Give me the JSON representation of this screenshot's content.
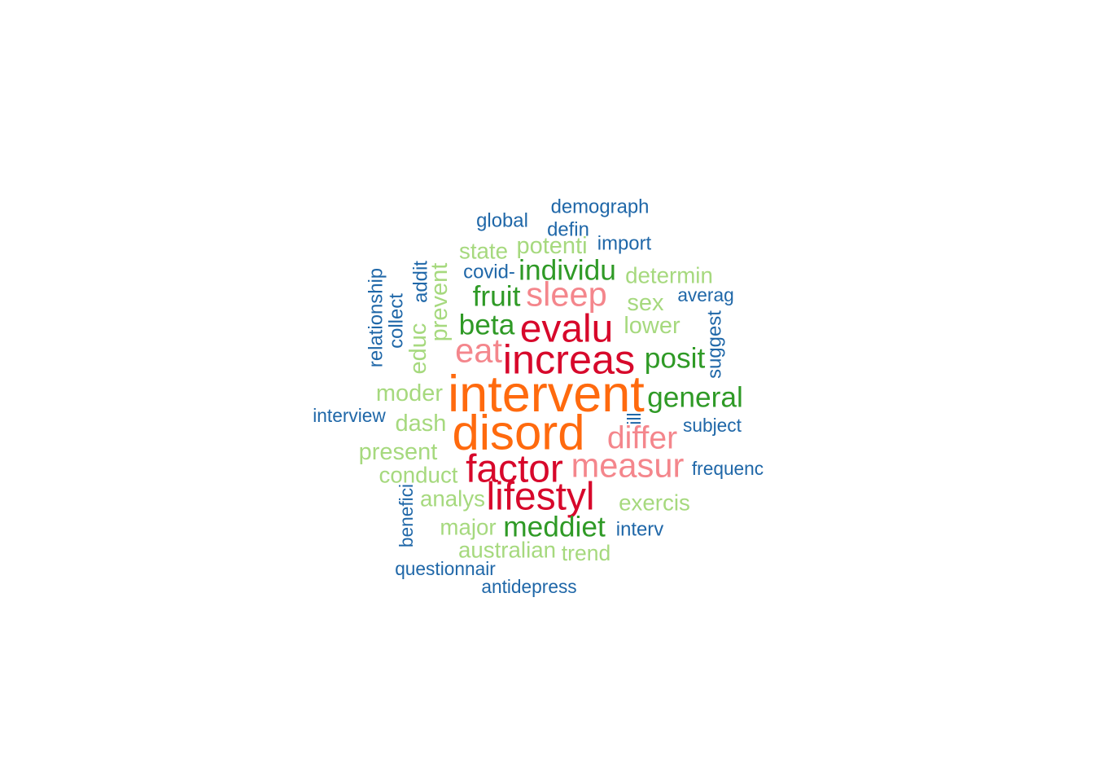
{
  "chart_data": {
    "type": "wordcloud",
    "palette": {
      "tier1": "#ff6a0e",
      "tier2": "#d7082b",
      "tier3": "#f4868c",
      "tier4": "#2f9a26",
      "tier5": "#a6d97e",
      "tier6": "#1f67a8"
    },
    "words": [
      {
        "word": "intervent",
        "weight": 10,
        "tier": "tier1"
      },
      {
        "word": "disord",
        "weight": 9.5,
        "tier": "tier1"
      },
      {
        "word": "increas",
        "weight": 8,
        "tier": "tier2"
      },
      {
        "word": "evalu",
        "weight": 7.6,
        "tier": "tier2"
      },
      {
        "word": "factor",
        "weight": 7.6,
        "tier": "tier2"
      },
      {
        "word": "lifestyl",
        "weight": 7.6,
        "tier": "tier2"
      },
      {
        "word": "sleep",
        "weight": 6.6,
        "tier": "tier3"
      },
      {
        "word": "eat",
        "weight": 6.6,
        "tier": "tier3"
      },
      {
        "word": "measur",
        "weight": 6.6,
        "tier": "tier3"
      },
      {
        "word": "differ",
        "weight": 6.2,
        "tier": "tier3"
      },
      {
        "word": "individu",
        "weight": 5.6,
        "tier": "tier4"
      },
      {
        "word": "fruit",
        "weight": 5.6,
        "tier": "tier4"
      },
      {
        "word": "beta",
        "weight": 5.6,
        "tier": "tier4"
      },
      {
        "word": "posit",
        "weight": 5.6,
        "tier": "tier4"
      },
      {
        "word": "general",
        "weight": 5.6,
        "tier": "tier4"
      },
      {
        "word": "meddiet",
        "weight": 5.6,
        "tier": "tier4"
      },
      {
        "word": "potenti",
        "weight": 4.6,
        "tier": "tier5"
      },
      {
        "word": "state",
        "weight": 4.4,
        "tier": "tier5"
      },
      {
        "word": "determin",
        "weight": 4.4,
        "tier": "tier5"
      },
      {
        "word": "sex",
        "weight": 4.6,
        "tier": "tier5"
      },
      {
        "word": "lower",
        "weight": 4.6,
        "tier": "tier5"
      },
      {
        "word": "prevent",
        "weight": 4.6,
        "tier": "tier5"
      },
      {
        "word": "educ",
        "weight": 4.6,
        "tier": "tier5"
      },
      {
        "word": "moder",
        "weight": 4.6,
        "tier": "tier5"
      },
      {
        "word": "dash",
        "weight": 4.6,
        "tier": "tier5"
      },
      {
        "word": "present",
        "weight": 4.6,
        "tier": "tier5"
      },
      {
        "word": "conduct",
        "weight": 4.4,
        "tier": "tier5"
      },
      {
        "word": "analys",
        "weight": 4.4,
        "tier": "tier5"
      },
      {
        "word": "exercis",
        "weight": 4.4,
        "tier": "tier5"
      },
      {
        "word": "major",
        "weight": 4.4,
        "tier": "tier5"
      },
      {
        "word": "australian",
        "weight": 4.4,
        "tier": "tier5"
      },
      {
        "word": "trend",
        "weight": 4.2,
        "tier": "tier5"
      },
      {
        "word": "demograph",
        "weight": 3.8,
        "tier": "tier6"
      },
      {
        "word": "global",
        "weight": 3.8,
        "tier": "tier6"
      },
      {
        "word": "defin",
        "weight": 3.8,
        "tier": "tier6"
      },
      {
        "word": "import",
        "weight": 3.8,
        "tier": "tier6"
      },
      {
        "word": "covid-",
        "weight": 3.8,
        "tier": "tier6"
      },
      {
        "word": "averag",
        "weight": 3.6,
        "tier": "tier6"
      },
      {
        "word": "relationship",
        "weight": 3.8,
        "tier": "tier6"
      },
      {
        "word": "collect",
        "weight": 3.8,
        "tier": "tier6"
      },
      {
        "word": "addit",
        "weight": 3.8,
        "tier": "tier6"
      },
      {
        "word": "suggest",
        "weight": 3.8,
        "tier": "tier6"
      },
      {
        "word": "interview",
        "weight": 3.6,
        "tier": "tier6"
      },
      {
        "word": "ill",
        "weight": 3.6,
        "tier": "tier6"
      },
      {
        "word": "subject",
        "weight": 3.6,
        "tier": "tier6"
      },
      {
        "word": "frequenc",
        "weight": 3.6,
        "tier": "tier6"
      },
      {
        "word": "benefici",
        "weight": 3.6,
        "tier": "tier6"
      },
      {
        "word": "interv",
        "weight": 3.8,
        "tier": "tier6"
      },
      {
        "word": "questionnair",
        "weight": 3.6,
        "tier": "tier6"
      },
      {
        "word": "antidepress",
        "weight": 3.6,
        "tier": "tier6"
      }
    ]
  }
}
